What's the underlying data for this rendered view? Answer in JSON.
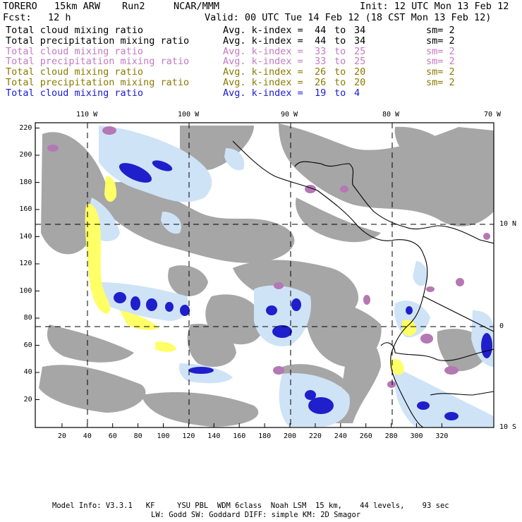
{
  "header": {
    "model": "TORERO",
    "resolution": "15km ARW",
    "run": "Run2",
    "org": "NCAR/MMM",
    "init": "Init: 12 UTC Mon 13 Feb 12",
    "fcst_label": "Fcst:",
    "fcst_value": "12 h",
    "valid": "Valid: 00 UTC Tue 14 Feb 12 (18 CST Mon 13 Feb 12)"
  },
  "legend": [
    {
      "field": "Total cloud mixing ratio",
      "avg": "Avg. k-index =",
      "from": "44",
      "to": "to",
      "end": "34",
      "sm": "sm= 2",
      "color": "#000000"
    },
    {
      "field": "Total precipitation mixing ratio",
      "avg": "Avg. k-index =",
      "from": "44",
      "to": "to",
      "end": "34",
      "sm": "sm= 2",
      "color": "#000000"
    },
    {
      "field": "Total cloud mixing ratio",
      "avg": "Avg. k-index =",
      "from": "33",
      "to": "to",
      "end": "25",
      "sm": "sm= 2",
      "color": "#c27ac2"
    },
    {
      "field": "Total precipitation mixing ratio",
      "avg": "Avg. k-index =",
      "from": "33",
      "to": "to",
      "end": "25",
      "sm": "sm= 2",
      "color": "#c27ac2"
    },
    {
      "field": "Total cloud mixing ratio",
      "avg": "Avg. k-index =",
      "from": "26",
      "to": "to",
      "end": "20",
      "sm": "sm= 2",
      "color": "#8a7a00"
    },
    {
      "field": "Total precipitation mixing ratio",
      "avg": "Avg. k-index =",
      "from": "26",
      "to": "to",
      "end": "20",
      "sm": "sm= 2",
      "color": "#8a7a00"
    },
    {
      "field": "Total cloud mixing ratio",
      "avg": "Avg. k-index =",
      "from": "19",
      "to": "to",
      "end": "4",
      "sm": "",
      "color": "#1a1ad6"
    }
  ],
  "map": {
    "lon_labels": [
      "110 W",
      "100 W",
      "90 W",
      "80 W",
      "70 W"
    ],
    "lat_labels": [
      "10 N",
      "0",
      "10 S"
    ],
    "x_ticks": [
      "20",
      "40",
      "60",
      "80",
      "100",
      "120",
      "140",
      "160",
      "180",
      "200",
      "220",
      "240",
      "260",
      "280",
      "300",
      "320"
    ],
    "y_ticks": [
      "220",
      "200",
      "180",
      "160",
      "140",
      "120",
      "100",
      "80",
      "60",
      "40",
      "20"
    ],
    "colors": {
      "cloud_gray": "#a6a6a6",
      "light_blue": "#cfe3f7",
      "blue": "#1f1fcc",
      "yellow": "#ffff66",
      "purple": "#b478b4"
    }
  },
  "footer": {
    "line1": "Model Info: V3.3.1   KF     YSU PBL  WDM 6class  Noah LSM  15 km,    44 levels,    93 sec",
    "line2": "LW: Godd SW: Goddard DIFF: simple KM: 2D Smagor"
  }
}
